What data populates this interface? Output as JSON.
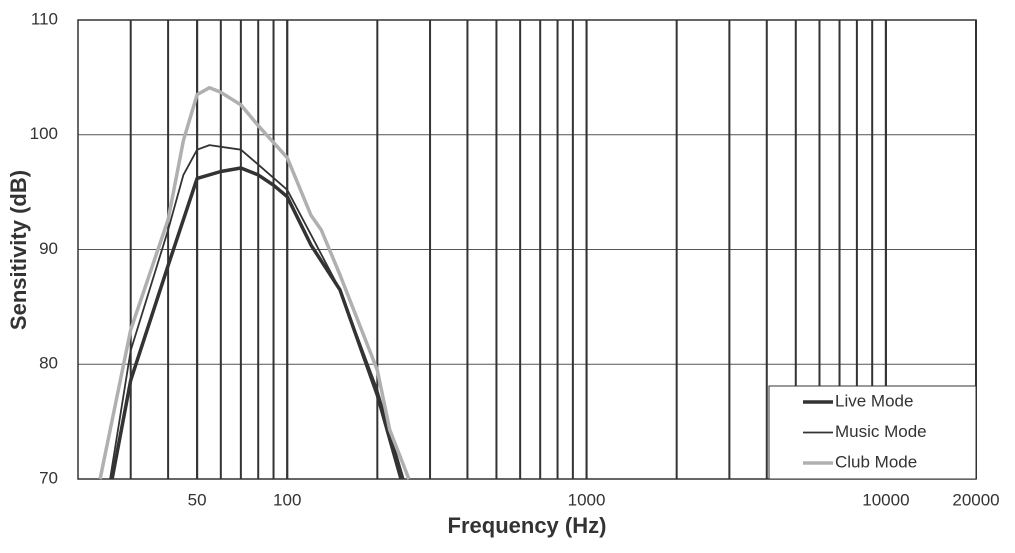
{
  "chart_data": {
    "type": "line",
    "x_label": "Frequency (Hz)",
    "y_label": "Sensitivity (dB)",
    "xlog": true,
    "xlim": [
      20,
      20000
    ],
    "ylim": [
      70,
      110
    ],
    "xticks": [
      50,
      100,
      1000,
      10000,
      20000
    ],
    "xgrid": [
      30,
      40,
      50,
      60,
      70,
      80,
      90,
      100,
      200,
      300,
      400,
      500,
      600,
      700,
      800,
      900,
      1000,
      2000,
      3000,
      4000,
      5000,
      6000,
      7000,
      8000,
      9000,
      10000
    ],
    "yticks": [
      70,
      80,
      90,
      100,
      110
    ],
    "grid": true,
    "legend": "lower right",
    "series": [
      {
        "name": "Live Mode",
        "color": "#333333",
        "width": 3.5,
        "x": [
          26,
          30,
          40,
          50,
          60,
          70,
          80,
          90,
          100,
          120,
          150,
          200,
          240
        ],
        "values": [
          70,
          78.6,
          88.6,
          96.2,
          96.8,
          97.1,
          96.5,
          95.6,
          94.6,
          90.4,
          86.5,
          77.3,
          70
        ]
      },
      {
        "name": "Music Mode",
        "color": "#333333",
        "width": 1.8,
        "x": [
          25.6,
          30,
          40,
          45,
          50,
          55,
          70,
          80,
          100,
          120,
          150,
          200,
          245
        ],
        "values": [
          70,
          81.2,
          91.7,
          96.5,
          98.7,
          99.1,
          98.7,
          97.4,
          95.2,
          91.3,
          86.5,
          77.8,
          70
        ]
      },
      {
        "name": "Club Mode",
        "color": "#b0b0b0",
        "width": 3.5,
        "x": [
          23.7,
          30,
          40,
          45,
          50,
          55,
          60,
          70,
          80,
          100,
          120,
          130,
          150,
          200,
          220,
          255
        ],
        "values": [
          70,
          83,
          92.6,
          99.5,
          103.5,
          104.1,
          103.7,
          102.6,
          100.8,
          98,
          93,
          91.7,
          87.8,
          79.5,
          74.3,
          70
        ]
      }
    ]
  }
}
